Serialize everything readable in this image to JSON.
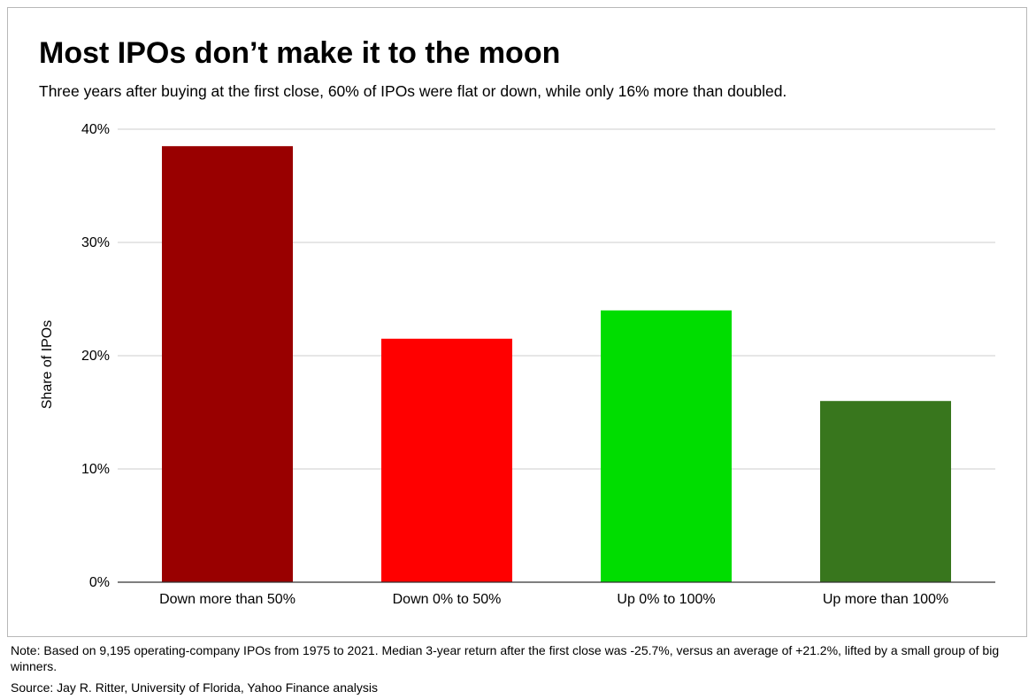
{
  "header": {
    "title": "Most IPOs don’t make it to the moon",
    "subtitle": "Three years after buying at the first close, 60% of IPOs were flat or down, while only 16% more than doubled."
  },
  "chart_data": {
    "type": "bar",
    "categories": [
      "Down more than 50%",
      "Down 0% to 50%",
      "Up 0% to 100%",
      "Up more than 100%"
    ],
    "values": [
      38.5,
      21.5,
      24.0,
      16.0
    ],
    "colors": [
      "#990000",
      "#ff0000",
      "#00dd00",
      "#38761d"
    ],
    "title": "Most IPOs don’t make it to the moon",
    "xlabel": "",
    "ylabel": "Share of IPOs",
    "ylim": [
      0,
      40
    ],
    "yticks": [
      {
        "value": 0,
        "label": "0%"
      },
      {
        "value": 10,
        "label": "10%"
      },
      {
        "value": 20,
        "label": "20%"
      },
      {
        "value": 30,
        "label": "30%"
      },
      {
        "value": 40,
        "label": "40%"
      }
    ],
    "grid": true,
    "legend": "none"
  },
  "footer": {
    "note": "Note: Based on 9,195 operating-company IPOs from 1975 to 2021. Median 3-year return after the first close was -25.7%, versus an average of +21.2%, lifted by a small group of big winners.",
    "source": "Source: Jay R. Ritter, University of Florida, Yahoo Finance analysis"
  }
}
